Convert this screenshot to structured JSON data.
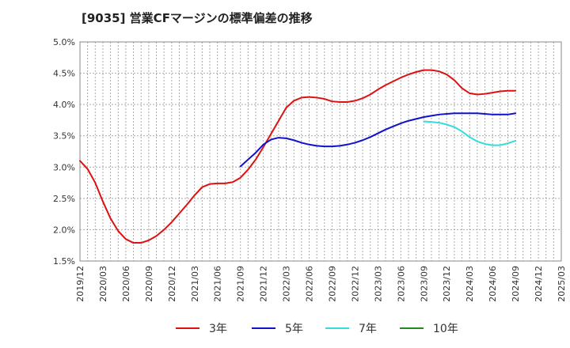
{
  "chart_data": {
    "type": "line",
    "title": "[9035]  営業CFマージンの標準偏差の推移",
    "xlabel": "",
    "ylabel": "",
    "ylim": [
      1.5,
      5.0
    ],
    "yticks": [
      "1.5%",
      "2.0%",
      "2.5%",
      "3.0%",
      "3.5%",
      "4.0%",
      "4.5%",
      "5.0%"
    ],
    "xticks": [
      "2019/12",
      "2020/03",
      "2020/06",
      "2020/09",
      "2020/12",
      "2021/03",
      "2021/06",
      "2021/09",
      "2021/12",
      "2022/03",
      "2022/06",
      "2022/09",
      "2022/12",
      "2023/03",
      "2023/06",
      "2023/09",
      "2023/12",
      "2024/03",
      "2024/06",
      "2024/09",
      "2024/12",
      "2025/03"
    ],
    "grid": true,
    "legend_position": "bottom",
    "series": [
      {
        "name": "3年",
        "color": "#dd1111",
        "x": [
          "2019/12",
          "2020/01",
          "2020/02",
          "2020/03",
          "2020/04",
          "2020/05",
          "2020/06",
          "2020/07",
          "2020/08",
          "2020/09",
          "2020/10",
          "2020/11",
          "2020/12",
          "2021/01",
          "2021/02",
          "2021/03",
          "2021/04",
          "2021/05",
          "2021/06",
          "2021/07",
          "2021/08",
          "2021/09",
          "2021/10",
          "2021/11",
          "2021/12",
          "2022/01",
          "2022/02",
          "2022/03",
          "2022/04",
          "2022/05",
          "2022/06",
          "2022/07",
          "2022/08",
          "2022/09",
          "2022/10",
          "2022/11",
          "2022/12",
          "2023/01",
          "2023/02",
          "2023/03",
          "2023/04",
          "2023/05",
          "2023/06",
          "2023/07",
          "2023/08",
          "2023/09",
          "2023/10",
          "2023/11",
          "2023/12",
          "2024/01",
          "2024/02",
          "2024/03",
          "2024/04",
          "2024/05",
          "2024/06",
          "2024/07",
          "2024/08",
          "2024/09"
        ],
        "values": [
          3.1,
          2.97,
          2.75,
          2.45,
          2.18,
          1.98,
          1.85,
          1.79,
          1.79,
          1.83,
          1.9,
          2.0,
          2.12,
          2.26,
          2.4,
          2.55,
          2.68,
          2.73,
          2.74,
          2.74,
          2.76,
          2.83,
          2.96,
          3.12,
          3.32,
          3.53,
          3.74,
          3.95,
          4.06,
          4.11,
          4.12,
          4.11,
          4.09,
          4.05,
          4.04,
          4.04,
          4.06,
          4.1,
          4.16,
          4.24,
          4.31,
          4.37,
          4.43,
          4.48,
          4.52,
          4.55,
          4.55,
          4.53,
          4.48,
          4.39,
          4.26,
          4.18,
          4.16,
          4.17,
          4.19,
          4.21,
          4.22,
          4.22
        ]
      },
      {
        "name": "5年",
        "color": "#1111cc",
        "x": [
          "2021/09",
          "2021/10",
          "2021/11",
          "2021/12",
          "2022/01",
          "2022/02",
          "2022/03",
          "2022/04",
          "2022/05",
          "2022/06",
          "2022/07",
          "2022/08",
          "2022/09",
          "2022/10",
          "2022/11",
          "2022/12",
          "2023/01",
          "2023/02",
          "2023/03",
          "2023/04",
          "2023/05",
          "2023/06",
          "2023/07",
          "2023/08",
          "2023/09",
          "2023/10",
          "2023/11",
          "2023/12",
          "2024/01",
          "2024/02",
          "2024/03",
          "2024/04",
          "2024/05",
          "2024/06",
          "2024/07",
          "2024/08",
          "2024/09"
        ],
        "values": [
          3.01,
          3.12,
          3.23,
          3.36,
          3.44,
          3.47,
          3.46,
          3.43,
          3.39,
          3.36,
          3.34,
          3.33,
          3.33,
          3.34,
          3.36,
          3.39,
          3.43,
          3.48,
          3.54,
          3.6,
          3.65,
          3.7,
          3.74,
          3.77,
          3.8,
          3.82,
          3.84,
          3.85,
          3.86,
          3.86,
          3.86,
          3.86,
          3.85,
          3.84,
          3.84,
          3.84,
          3.86
        ]
      },
      {
        "name": "7年",
        "color": "#33dddd",
        "x": [
          "2023/09",
          "2023/10",
          "2023/11",
          "2023/12",
          "2024/01",
          "2024/02",
          "2024/03",
          "2024/04",
          "2024/05",
          "2024/06",
          "2024/07",
          "2024/08",
          "2024/09"
        ],
        "values": [
          3.73,
          3.72,
          3.71,
          3.68,
          3.64,
          3.57,
          3.48,
          3.41,
          3.37,
          3.35,
          3.35,
          3.38,
          3.42
        ]
      },
      {
        "name": "10年",
        "color": "#228822",
        "x": [],
        "values": []
      }
    ]
  }
}
